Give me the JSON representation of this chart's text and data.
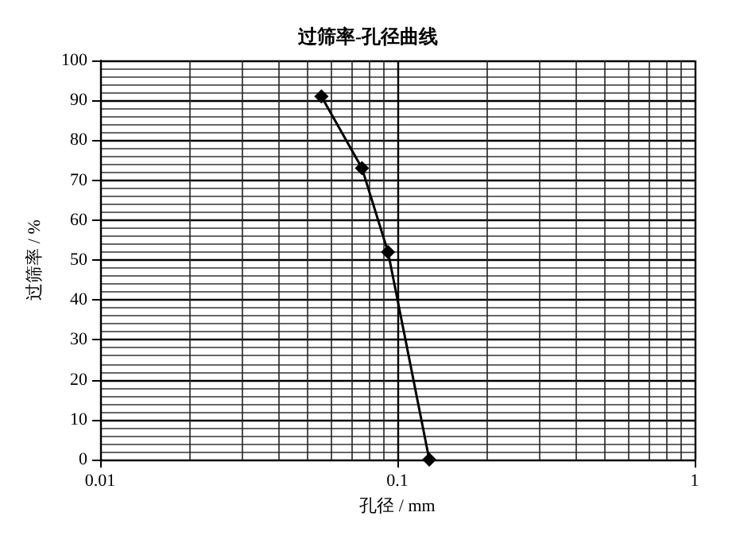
{
  "chart_data": {
    "type": "line",
    "title": "过筛率-孔径曲线",
    "xlabel": "孔径 / mm",
    "ylabel": "过筛率 / %",
    "x": [
      0.0555,
      0.076,
      0.093,
      0.128
    ],
    "series": [
      {
        "color": "#000000",
        "values": [
          91,
          73,
          52,
          0
        ]
      }
    ],
    "log": "x",
    "xlim": [
      0.01,
      1
    ],
    "xticks": [
      0.01,
      0.1,
      1
    ],
    "ylim": [
      0,
      100
    ],
    "yticks": [
      0,
      10,
      20,
      30,
      40,
      50,
      60,
      70,
      80,
      90,
      100
    ],
    "grid": true,
    "marker": "diamond",
    "line_style": "solid"
  }
}
